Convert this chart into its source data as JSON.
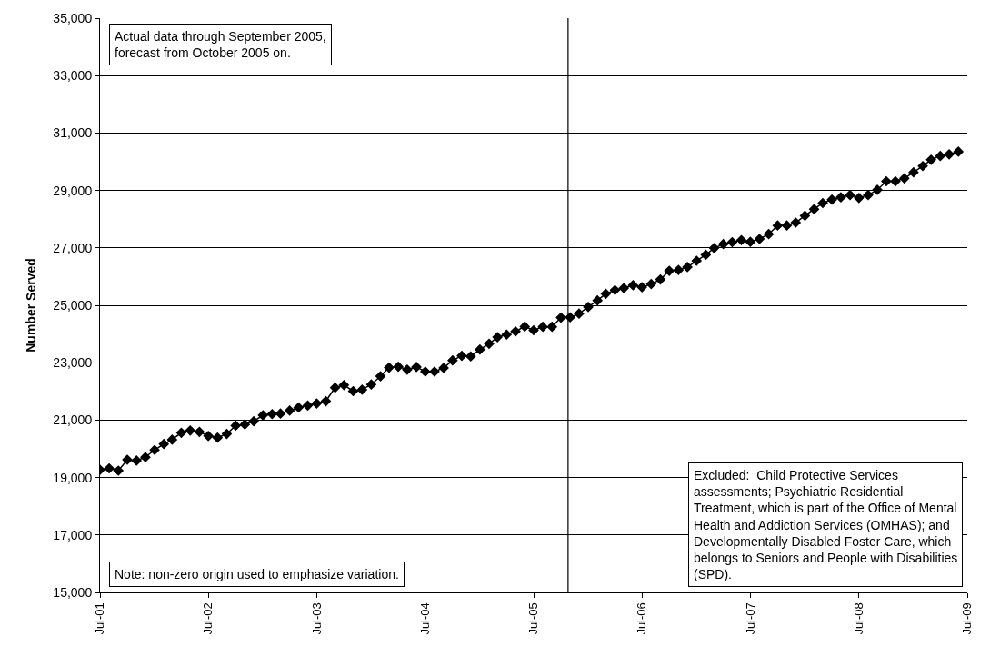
{
  "chart_data": {
    "type": "line",
    "ylabel": "Number Served",
    "x": [
      "2001-07",
      "2001-08",
      "2001-09",
      "2001-10",
      "2001-11",
      "2001-12",
      "2002-01",
      "2002-02",
      "2002-03",
      "2002-04",
      "2002-05",
      "2002-06",
      "2002-07",
      "2002-08",
      "2002-09",
      "2002-10",
      "2002-11",
      "2002-12",
      "2003-01",
      "2003-02",
      "2003-03",
      "2003-04",
      "2003-05",
      "2003-06",
      "2003-07",
      "2003-08",
      "2003-09",
      "2003-10",
      "2003-11",
      "2003-12",
      "2004-01",
      "2004-02",
      "2004-03",
      "2004-04",
      "2004-05",
      "2004-06",
      "2004-07",
      "2004-08",
      "2004-09",
      "2004-10",
      "2004-11",
      "2004-12",
      "2005-01",
      "2005-02",
      "2005-03",
      "2005-04",
      "2005-05",
      "2005-06",
      "2005-07",
      "2005-08",
      "2005-09",
      "2005-10",
      "2005-11",
      "2005-12",
      "2006-01",
      "2006-02",
      "2006-03",
      "2006-04",
      "2006-05",
      "2006-06",
      "2006-07",
      "2006-08",
      "2006-09",
      "2006-10",
      "2006-11",
      "2006-12",
      "2007-01",
      "2007-02",
      "2007-03",
      "2007-04",
      "2007-05",
      "2007-06",
      "2007-07",
      "2007-08",
      "2007-09",
      "2007-10",
      "2007-11",
      "2007-12",
      "2008-01",
      "2008-02",
      "2008-03",
      "2008-04",
      "2008-05",
      "2008-06",
      "2008-07",
      "2008-08",
      "2008-09",
      "2008-10",
      "2008-11",
      "2008-12",
      "2009-01",
      "2009-02",
      "2009-03",
      "2009-04",
      "2009-05",
      "2009-06"
    ],
    "series": [
      {
        "color": "#000000",
        "values": [
          19270,
          19320,
          19240,
          19620,
          19590,
          19710,
          19960,
          20170,
          20320,
          20560,
          20640,
          20590,
          20450,
          20390,
          20520,
          20810,
          20850,
          20960,
          21170,
          21210,
          21230,
          21330,
          21440,
          21510,
          21580,
          21660,
          22130,
          22220,
          22010,
          22060,
          22240,
          22530,
          22830,
          22860,
          22760,
          22850,
          22690,
          22690,
          22820,
          23080,
          23240,
          23220,
          23460,
          23660,
          23890,
          23980,
          24090,
          24260,
          24130,
          24250,
          24250,
          24570,
          24580,
          24710,
          24940,
          25170,
          25400,
          25530,
          25600,
          25700,
          25630,
          25740,
          25900,
          26200,
          26230,
          26330,
          26550,
          26760,
          26990,
          27130,
          27200,
          27270,
          27210,
          27310,
          27480,
          27780,
          27780,
          27880,
          28120,
          28350,
          28560,
          28680,
          28760,
          28840,
          28740,
          28840,
          29020,
          29320,
          29320,
          29420,
          29630,
          29850,
          30070,
          30200,
          30260,
          30350
        ]
      }
    ],
    "xlim": [
      "2001-07",
      "2009-07"
    ],
    "xticks": [
      {
        "value": "2001-07",
        "label": "Jul-01"
      },
      {
        "value": "2002-07",
        "label": "Jul-02"
      },
      {
        "value": "2003-07",
        "label": "Jul-03"
      },
      {
        "value": "2004-07",
        "label": "Jul-04"
      },
      {
        "value": "2005-07",
        "label": "Jul-05"
      },
      {
        "value": "2006-07",
        "label": "Jul-06"
      },
      {
        "value": "2007-07",
        "label": "Jul-07"
      },
      {
        "value": "2008-07",
        "label": "Jul-08"
      },
      {
        "value": "2009-07",
        "label": "Jul-09"
      }
    ],
    "ylim": [
      15000,
      35000
    ],
    "yticks": [
      {
        "value": 15000,
        "label": "15,000"
      },
      {
        "value": 17000,
        "label": "17,000"
      },
      {
        "value": 19000,
        "label": "19,000"
      },
      {
        "value": 21000,
        "label": "21,000"
      },
      {
        "value": 23000,
        "label": "23,000"
      },
      {
        "value": 25000,
        "label": "25,000"
      },
      {
        "value": 27000,
        "label": "27,000"
      },
      {
        "value": 29000,
        "label": "29,000"
      },
      {
        "value": 31000,
        "label": "31,000"
      },
      {
        "value": 33000,
        "label": "33,000"
      },
      {
        "value": 35000,
        "label": "35,000"
      }
    ],
    "grid": "y",
    "marker": "diamond",
    "line_style": "solid",
    "ref_lines": [
      {
        "axis": "x",
        "value": "2005-10-25",
        "color": "#000000"
      }
    ],
    "annotations": [
      "Actual data through September 2005,\nforecast from October 2005 on.",
      "Note: non-zero origin used to emphasize variation.",
      "Excluded:  Child Protective Services\nassessments; Psychiatric Residential\nTreatment, which is part of the Office of Mental\nHealth and Addiction Services (OMHAS); and\nDevelopmentally Disabled Foster Care, which\nbelongs to Seniors and People with Disabilities\n(SPD)."
    ]
  }
}
